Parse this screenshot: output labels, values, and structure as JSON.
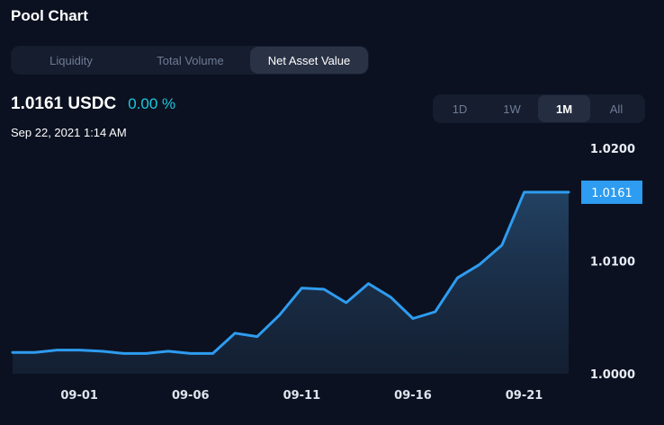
{
  "header": {
    "title": "Pool Chart"
  },
  "metric_tabs": [
    {
      "label": "Liquidity",
      "active": false
    },
    {
      "label": "Total Volume",
      "active": false
    },
    {
      "label": "Net Asset Value",
      "active": true
    }
  ],
  "summary": {
    "value": "1.0161 USDC",
    "change": "0.00 %",
    "timestamp": "Sep 22, 2021 1:14 AM"
  },
  "range_tabs": [
    {
      "label": "1D",
      "active": false
    },
    {
      "label": "1W",
      "active": false
    },
    {
      "label": "1M",
      "active": true
    },
    {
      "label": "All",
      "active": false
    }
  ],
  "colors": {
    "background": "#0b1120",
    "line": "#2e9cf0",
    "accent_text": "#1cc8dc",
    "label_bg": "#2e9cf0"
  },
  "chart_data": {
    "type": "area",
    "x": [
      "08-29",
      "08-30",
      "08-31",
      "09-01",
      "09-02",
      "09-03",
      "09-04",
      "09-05",
      "09-06",
      "09-07",
      "09-08",
      "09-09",
      "09-10",
      "09-11",
      "09-12",
      "09-13",
      "09-14",
      "09-15",
      "09-16",
      "09-17",
      "09-18",
      "09-19",
      "09-20",
      "09-21",
      "09-22",
      "09-23"
    ],
    "series": [
      {
        "values": [
          1.0019,
          1.0019,
          1.0021,
          1.0021,
          1.002,
          1.0018,
          1.0018,
          1.002,
          1.0018,
          1.0018,
          1.0036,
          1.0033,
          1.0052,
          1.0076,
          1.0075,
          1.0063,
          1.008,
          1.0068,
          1.0049,
          1.0055,
          1.0085,
          1.0097,
          1.0114,
          1.0161,
          1.0161,
          1.0161
        ]
      }
    ],
    "x_ticks": [
      "09-01",
      "09-06",
      "09-11",
      "09-16",
      "09-21"
    ],
    "y_ticks": [
      "1.0000",
      "1.0100",
      "1.0200"
    ],
    "ylim": [
      1.0,
      1.02
    ],
    "last_value_label": "1.0161",
    "grid": false
  }
}
